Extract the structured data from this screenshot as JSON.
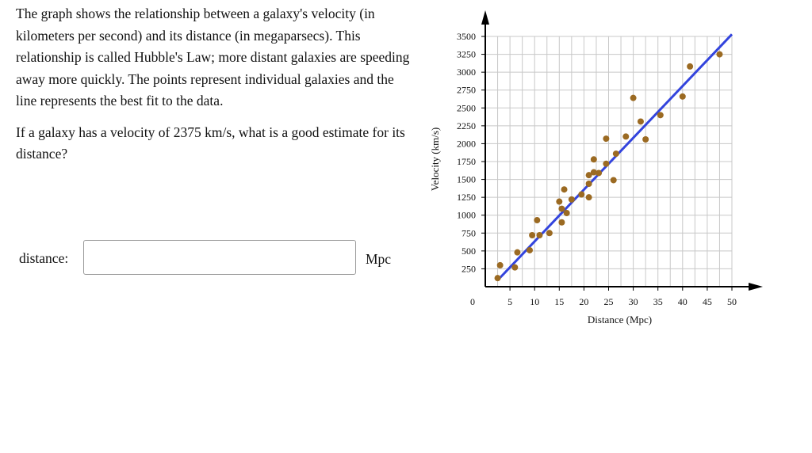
{
  "question": {
    "paragraph1": "The graph shows the relationship between a galaxy's velocity (in kilometers per second) and its distance (in megaparsecs). This relationship is called Hubble's Law; more distant galaxies are speeding away more quickly. The points represent individual galaxies and the line represents the best fit to the data.",
    "paragraph2": "If a galaxy has a velocity of 2375 km/s, what is a good estimate for its distance?"
  },
  "answer": {
    "label": "distance:",
    "value": "",
    "unit": "Mpc"
  },
  "colors": {
    "points": "#9b6a22",
    "fit_line": "#3344dd",
    "grid": "#c8c8c8",
    "axis": "#000000"
  },
  "chart_data": {
    "type": "scatter",
    "title": "",
    "xlabel": "Distance (Mpc)",
    "ylabel": "Velocity (km/s)",
    "xlim": [
      0,
      50
    ],
    "ylim": [
      0,
      3500
    ],
    "x_origin_label": "0",
    "x_ticks": [
      5,
      10,
      15,
      20,
      25,
      30,
      35,
      40,
      45,
      50
    ],
    "y_ticks": [
      250,
      500,
      750,
      1000,
      1250,
      1500,
      1750,
      2000,
      2250,
      2500,
      2750,
      3000,
      3250,
      3500
    ],
    "grid": true,
    "legend": "none",
    "points": [
      {
        "x": 2.5,
        "y": 120
      },
      {
        "x": 3,
        "y": 300
      },
      {
        "x": 6,
        "y": 270
      },
      {
        "x": 6.5,
        "y": 480
      },
      {
        "x": 9,
        "y": 510
      },
      {
        "x": 9.5,
        "y": 720
      },
      {
        "x": 10.5,
        "y": 930
      },
      {
        "x": 11,
        "y": 720
      },
      {
        "x": 13,
        "y": 750
      },
      {
        "x": 15,
        "y": 1190
      },
      {
        "x": 15.5,
        "y": 1090
      },
      {
        "x": 15.5,
        "y": 900
      },
      {
        "x": 16,
        "y": 1360
      },
      {
        "x": 16.5,
        "y": 1030
      },
      {
        "x": 17.5,
        "y": 1220
      },
      {
        "x": 19.5,
        "y": 1290
      },
      {
        "x": 21,
        "y": 1250
      },
      {
        "x": 21,
        "y": 1440
      },
      {
        "x": 21,
        "y": 1560
      },
      {
        "x": 22,
        "y": 1600
      },
      {
        "x": 22,
        "y": 1780
      },
      {
        "x": 23,
        "y": 1590
      },
      {
        "x": 24.5,
        "y": 1720
      },
      {
        "x": 24.5,
        "y": 2070
      },
      {
        "x": 26,
        "y": 1490
      },
      {
        "x": 26.5,
        "y": 1860
      },
      {
        "x": 28.5,
        "y": 2100
      },
      {
        "x": 30,
        "y": 2640
      },
      {
        "x": 31.5,
        "y": 2310
      },
      {
        "x": 32.5,
        "y": 2060
      },
      {
        "x": 35.5,
        "y": 2400
      },
      {
        "x": 40,
        "y": 2660
      },
      {
        "x": 41.5,
        "y": 3080
      },
      {
        "x": 47.5,
        "y": 3250
      }
    ],
    "fit_line": {
      "x": [
        2.5,
        50
      ],
      "y": [
        90,
        3530
      ]
    }
  }
}
